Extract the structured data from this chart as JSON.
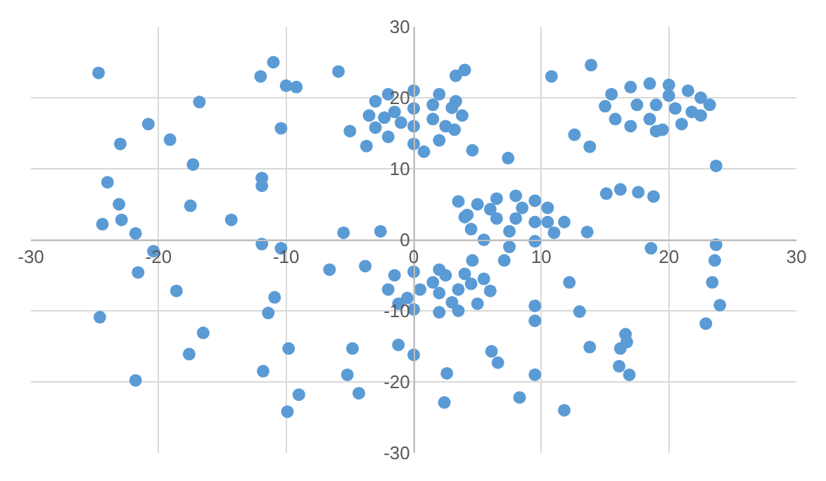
{
  "chart_data": {
    "type": "scatter",
    "marker": "circle",
    "color": "#5b9bd5",
    "grid": true,
    "xlim": [
      -30,
      30
    ],
    "ylim": [
      -30,
      30
    ],
    "xticks": [
      -30,
      -20,
      -10,
      0,
      10,
      20,
      30
    ],
    "yticks": [
      -30,
      -20,
      -10,
      0,
      10,
      20,
      30
    ],
    "x": [
      -24.7,
      -20.8,
      -23.0,
      -16.8,
      -19.1,
      -17.3,
      -24.0,
      -23.1,
      -17.5,
      -24.4,
      -22.9,
      -21.8,
      -14.3,
      -12.0,
      -11.0,
      -10.0,
      -9.2,
      -10.4,
      -11.9,
      -11.9,
      -5.9,
      -5.0,
      -3.7,
      -5.5,
      -2.6,
      3.3,
      4.0,
      10.8,
      13.9,
      0.8,
      4.6,
      7.4,
      12.6,
      13.8,
      23.7,
      15.1,
      16.2,
      17.6,
      18.8,
      3.5,
      13.6,
      18.6,
      23.7,
      23.6,
      23.4,
      24.0,
      22.9,
      16.6,
      16.7,
      16.2,
      16.1,
      16.9,
      13.8,
      13.0,
      12.2,
      9.5,
      9.5,
      9.5,
      6.1,
      6.6,
      2.6,
      2.4,
      8.3,
      11.8,
      0.0,
      -1.2,
      4.6,
      7.1,
      -20.4,
      -21.6,
      -18.6,
      -24.6,
      -16.5,
      -17.6,
      -21.8,
      -11.9,
      -10.4,
      -10.9,
      -11.4,
      -9.8,
      -11.8,
      -9.0,
      -9.9,
      -6.6,
      -3.8,
      -4.8,
      -5.2,
      -4.3,
      -3.5,
      -3.0,
      -2.0,
      0.0,
      2.0,
      3.3,
      3.8,
      3.2,
      2.0,
      0.0,
      -2.0,
      -3.0,
      -1.5,
      0.0,
      1.5,
      0.0,
      -1.0,
      1.5,
      2.5,
      -2.3,
      3.0,
      15.0,
      15.5,
      17.0,
      18.5,
      20.0,
      21.5,
      22.5,
      23.2,
      22.5,
      21.0,
      19.0,
      17.0,
      15.8,
      17.5,
      19.0,
      20.5,
      18.5,
      20.0,
      21.8,
      19.5,
      4.2,
      5.0,
      6.5,
      8.0,
      9.5,
      10.5,
      11.8,
      11.0,
      9.5,
      7.5,
      5.5,
      4.5,
      6.5,
      8.0,
      9.5,
      7.5,
      8.5,
      6.0,
      10.5,
      4.0,
      -2.0,
      -1.5,
      0.0,
      2.0,
      4.0,
      5.5,
      6.0,
      5.0,
      3.5,
      2.0,
      0.0,
      -1.2,
      0.5,
      2.0,
      3.5,
      1.5,
      3.0,
      4.5,
      -0.5,
      2.5
    ],
    "values": [
      23.5,
      16.3,
      13.5,
      19.4,
      14.1,
      10.6,
      8.1,
      5.0,
      4.8,
      2.2,
      2.8,
      0.9,
      2.8,
      23.0,
      25.0,
      21.7,
      21.5,
      15.7,
      8.7,
      7.6,
      23.7,
      15.3,
      13.2,
      1.0,
      1.2,
      23.1,
      23.9,
      23.0,
      24.6,
      12.4,
      12.6,
      11.5,
      14.8,
      13.1,
      10.4,
      6.5,
      7.1,
      6.7,
      6.1,
      5.4,
      1.1,
      -1.2,
      -0.7,
      -2.9,
      -6.0,
      -9.2,
      -11.8,
      -13.3,
      -14.4,
      -15.3,
      -17.8,
      -19.0,
      -15.1,
      -10.1,
      -6.0,
      -9.3,
      -11.4,
      -19.0,
      -15.7,
      -17.3,
      -18.8,
      -22.9,
      -22.2,
      -24.0,
      -16.2,
      -14.8,
      -2.9,
      -2.9,
      -1.6,
      -4.6,
      -7.2,
      -10.9,
      -13.1,
      -16.1,
      -19.8,
      -0.6,
      -1.2,
      -8.1,
      -10.3,
      -15.3,
      -18.5,
      -21.8,
      -24.2,
      -4.2,
      -3.7,
      -15.3,
      -19.0,
      -21.6,
      17.5,
      19.5,
      20.5,
      21.0,
      20.5,
      19.5,
      17.5,
      15.5,
      14.0,
      13.5,
      14.5,
      15.8,
      18.0,
      18.5,
      17.0,
      16.0,
      16.5,
      19.0,
      16.0,
      17.2,
      18.6,
      18.8,
      20.5,
      21.5,
      22.0,
      21.8,
      21.0,
      20.0,
      19.0,
      17.5,
      16.3,
      15.3,
      16.0,
      17.0,
      19.0,
      19.0,
      18.5,
      17.0,
      20.3,
      18.0,
      15.5,
      3.5,
      5.0,
      5.8,
      6.2,
      5.5,
      4.5,
      2.5,
      1.0,
      -0.2,
      -1.0,
      0.0,
      1.5,
      3.0,
      3.0,
      2.5,
      1.2,
      4.5,
      4.3,
      2.5,
      3.2,
      -7.0,
      -5.0,
      -4.5,
      -4.2,
      -4.8,
      -5.5,
      -7.2,
      -9.0,
      -10.0,
      -10.2,
      -9.8,
      -9.0,
      -7.0,
      -7.5,
      -7.0,
      -6.0,
      -8.8,
      -6.2,
      -8.2,
      -5.0
    ]
  }
}
